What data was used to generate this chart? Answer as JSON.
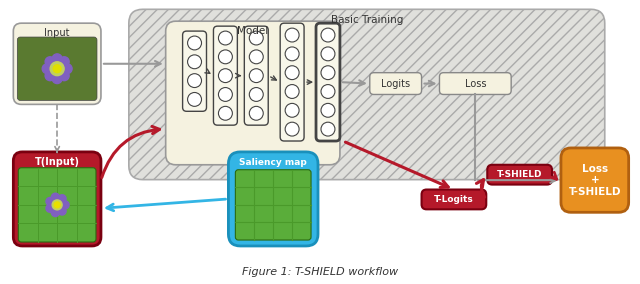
{
  "title": "Figure 1: T-SHIELD workflow",
  "basic_training_label": "Basic Training",
  "model_label": "Model",
  "input_label": "Input",
  "logits_label": "Logits",
  "loss_label": "Loss",
  "t_input_label": "T(Input)",
  "saliency_label": "Saliency map",
  "t_logits_label": "T-Logits",
  "t_shield_label": "T-SHIELD",
  "loss_shield_label": "Loss\n+\nT-SHIELD",
  "model_bg": "#f5f2e0",
  "input_bg": "#f5f2e0",
  "logits_bg": "#f5f2e0",
  "loss_bg": "#f5f2e0",
  "t_input_bg": "#b5192a",
  "saliency_bg": "#33b5e5",
  "t_logits_bg": "#b5192a",
  "t_shield_bg": "#b5192a",
  "loss_shield_bg": "#e89020",
  "bt_bg": "#e0e0dc",
  "arrow_gray": "#999999",
  "arrow_red": "#b5192a",
  "arrow_blue": "#33b5e5",
  "green_img": "#5aad3a",
  "green_grid": "#4a9a2a",
  "neuron_fill": "#ffffff",
  "neuron_edge": "#444444"
}
